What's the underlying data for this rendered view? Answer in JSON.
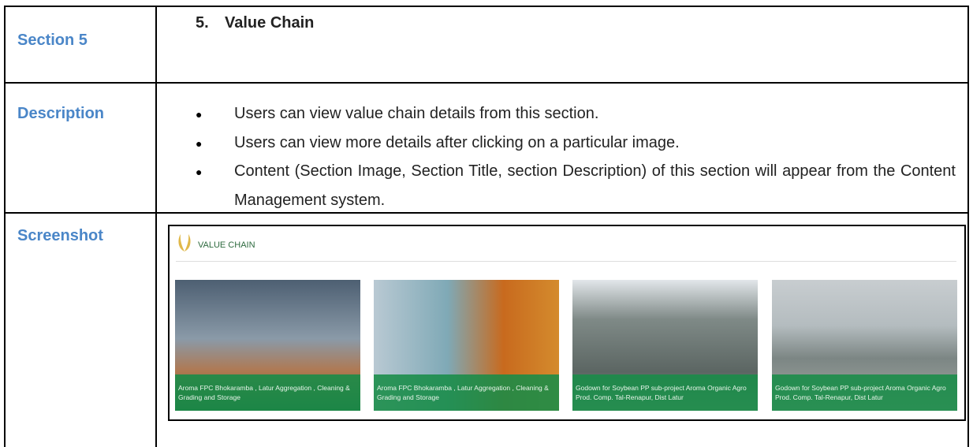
{
  "table": {
    "rows": [
      {
        "label": "Section 5",
        "number": "5.",
        "title": "Value Chain"
      },
      {
        "label": "Description",
        "bullets": [
          "Users can view value chain details from this section.",
          "Users can view more details after clicking on a particular image.",
          "Content (Section Image, Section Title, section Description) of this section will appear from the Content Management system."
        ]
      },
      {
        "label": "Screenshot",
        "screenshot": {
          "heading": "VALUE CHAIN",
          "cards": [
            {
              "caption": "Aroma FPC Bhokaramba , Latur Aggregation , Cleaning & Grading and Storage"
            },
            {
              "caption": "Aroma FPC Bhokaramba , Latur Aggregation , Cleaning & Grading and Storage"
            },
            {
              "caption": "Godown for Soybean PP sub-project Aroma Organic Agro Prod. Comp. Tal-Renapur, Dist Latur"
            },
            {
              "caption": "Godown for Soybean PP sub-project Aroma Organic Agro Prod. Comp. Tal-Renapur, Dist Latur"
            }
          ]
        }
      }
    ]
  }
}
